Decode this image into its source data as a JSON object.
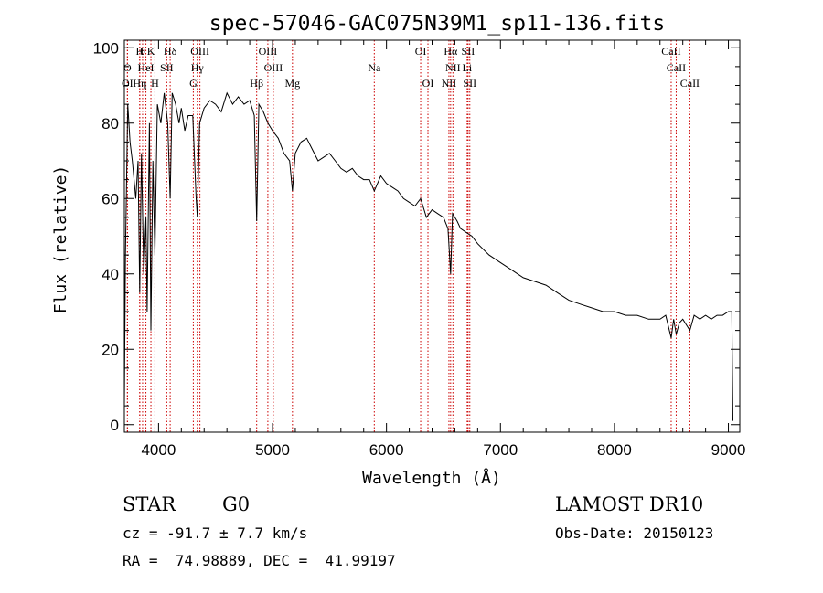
{
  "chart_data": {
    "type": "line",
    "title": "spec-57046-GAC075N39M1_sp11-136.fits",
    "xlabel": "Wavelength (Å)",
    "ylabel": "Flux (relative)",
    "xlim": [
      3700,
      9100
    ],
    "ylim": [
      -2,
      102
    ],
    "xticks": [
      4000,
      5000,
      6000,
      7000,
      8000,
      9000
    ],
    "yticks": [
      0,
      20,
      40,
      60,
      80,
      100
    ],
    "series": [
      {
        "x": [
          3700,
          3710,
          3730,
          3750,
          3770,
          3800,
          3820,
          3835,
          3850,
          3870,
          3889,
          3900,
          3920,
          3933,
          3950,
          3968,
          3990,
          4020,
          4050,
          4080,
          4102,
          4120,
          4150,
          4180,
          4200,
          4230,
          4260,
          4300,
          4330,
          4340,
          4360,
          4400,
          4450,
          4500,
          4550,
          4600,
          4650,
          4700,
          4750,
          4800,
          4840,
          4861,
          4880,
          4920,
          4960,
          5000,
          5050,
          5100,
          5150,
          5175,
          5200,
          5250,
          5300,
          5350,
          5400,
          5450,
          5500,
          5550,
          5600,
          5650,
          5700,
          5750,
          5800,
          5850,
          5893,
          5950,
          6000,
          6050,
          6100,
          6150,
          6200,
          6250,
          6300,
          6330,
          6350,
          6400,
          6450,
          6500,
          6540,
          6563,
          6580,
          6620,
          6650,
          6700,
          6750,
          6800,
          6900,
          7000,
          7100,
          7200,
          7300,
          7400,
          7500,
          7600,
          7700,
          7800,
          7900,
          8000,
          8100,
          8200,
          8300,
          8400,
          8450,
          8498,
          8520,
          8542,
          8570,
          8600,
          8662,
          8700,
          8750,
          8800,
          8850,
          8900,
          8950,
          9000,
          9030,
          9040
        ],
        "y": [
          5,
          45,
          85,
          75,
          70,
          60,
          70,
          35,
          72,
          40,
          55,
          30,
          80,
          25,
          70,
          45,
          85,
          80,
          88,
          80,
          60,
          88,
          85,
          80,
          84,
          78,
          82,
          82,
          60,
          55,
          80,
          84,
          86,
          85,
          83,
          88,
          85,
          87,
          85,
          86,
          82,
          54,
          85,
          83,
          80,
          78,
          76,
          72,
          70,
          62,
          72,
          75,
          76,
          73,
          70,
          71,
          72,
          70,
          68,
          67,
          68,
          66,
          65,
          65,
          62,
          66,
          64,
          63,
          62,
          60,
          59,
          58,
          60,
          57,
          55,
          57,
          56,
          55,
          52,
          40,
          56,
          54,
          52,
          51,
          50,
          48,
          45,
          43,
          41,
          39,
          38,
          37,
          35,
          33,
          32,
          31,
          30,
          30,
          29,
          29,
          28,
          28,
          29,
          23,
          28,
          24,
          27,
          28,
          25,
          29,
          28,
          29,
          28,
          29,
          29,
          30,
          30,
          1
        ]
      }
    ],
    "lines": [
      {
        "name": "H",
        "x": 3835,
        "row": 0
      },
      {
        "name": "θ",
        "x": 3860,
        "row": 0
      },
      {
        "name": "K",
        "x": 3933,
        "row": 0
      },
      {
        "name": "Hδ",
        "x": 4102,
        "row": 0
      },
      {
        "name": "OIII",
        "x": 4363,
        "row": 0
      },
      {
        "name": "OIII",
        "x": 4959,
        "row": 0
      },
      {
        "name": "OI",
        "x": 6300,
        "row": 0
      },
      {
        "name": "Hα",
        "x": 6563,
        "row": 0
      },
      {
        "name": "SII",
        "x": 6716,
        "row": 0
      },
      {
        "name": "CaII",
        "x": 8498,
        "row": 0
      },
      {
        "name": "O",
        "x": 3727,
        "row": 1
      },
      {
        "name": "HeI",
        "x": 3889,
        "row": 1
      },
      {
        "name": "SII",
        "x": 4072,
        "row": 1
      },
      {
        "name": "Hγ",
        "x": 4340,
        "row": 1
      },
      {
        "name": "OIII",
        "x": 5007,
        "row": 1
      },
      {
        "name": "Na",
        "x": 5893,
        "row": 1
      },
      {
        "name": "NII",
        "x": 6583,
        "row": 1
      },
      {
        "name": "Li",
        "x": 6708,
        "row": 1
      },
      {
        "name": "CaII",
        "x": 8542,
        "row": 1
      },
      {
        "name": "OI",
        "x": 3727,
        "row": 2
      },
      {
        "name": "Hη",
        "x": 3835,
        "row": 2
      },
      {
        "name": "H",
        "x": 3968,
        "row": 2
      },
      {
        "name": "G",
        "x": 4305,
        "row": 2
      },
      {
        "name": "Hβ",
        "x": 4861,
        "row": 2
      },
      {
        "name": "Mg",
        "x": 5175,
        "row": 2
      },
      {
        "name": "OI",
        "x": 6364,
        "row": 2
      },
      {
        "name": "NII",
        "x": 6548,
        "row": 2
      },
      {
        "name": "SII",
        "x": 6731,
        "row": 2
      },
      {
        "name": "CaII",
        "x": 8662,
        "row": 2
      }
    ],
    "grid": false,
    "legend": "none"
  },
  "footer": {
    "class_label": "STAR",
    "subclass": "G0",
    "survey": "LAMOST DR10",
    "cz": "cz = -91.7 ± 7.7 km/s",
    "obs_date": "Obs-Date: 20150123",
    "coords": "RA =  74.98889, DEC =  41.99197"
  },
  "colors": {
    "spectrum": "#000000",
    "line_marker": "#cc0000"
  }
}
